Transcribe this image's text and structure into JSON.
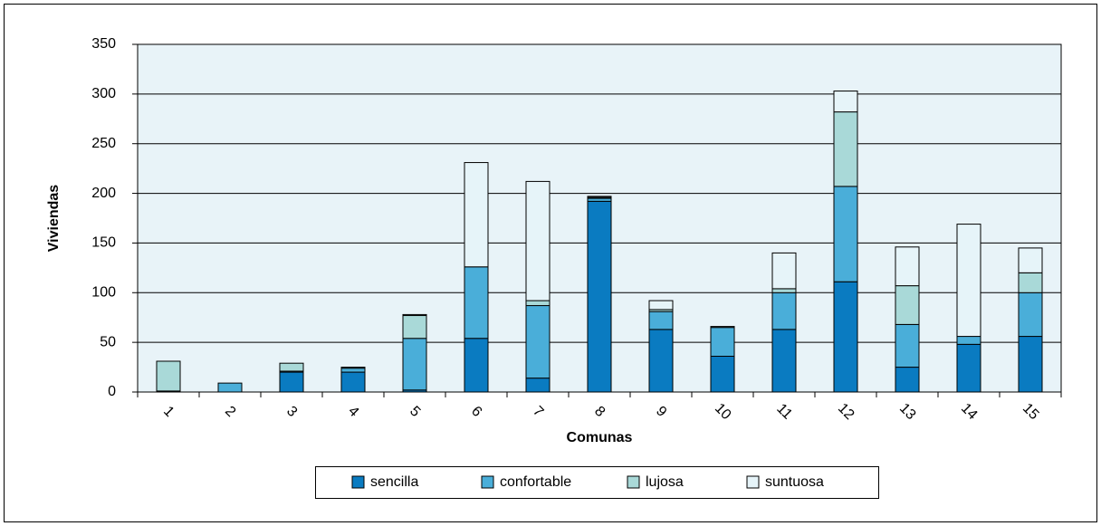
{
  "chart_data": {
    "type": "stacked_bar",
    "x_label": "Comunas",
    "y_label": "Viviendas",
    "categories": [
      "1",
      "2",
      "3",
      "4",
      "5",
      "6",
      "7",
      "8",
      "9",
      "10",
      "11",
      "12",
      "13",
      "14",
      "15"
    ],
    "series": [
      {
        "name": "sencilla",
        "color": "#0a7bc1",
        "values": [
          1,
          0,
          20,
          20,
          2,
          54,
          14,
          192,
          63,
          36,
          63,
          111,
          25,
          48,
          56
        ]
      },
      {
        "name": "confortable",
        "color": "#4aaed9",
        "values": [
          0,
          9,
          1,
          4,
          52,
          72,
          73,
          3,
          18,
          29,
          37,
          96,
          43,
          8,
          44
        ]
      },
      {
        "name": "lujosa",
        "color": "#a9d9d8",
        "values": [
          30,
          0,
          8,
          1,
          23,
          0,
          5,
          1,
          2,
          1,
          4,
          75,
          39,
          0,
          20
        ]
      },
      {
        "name": "suntuosa",
        "color": "#e6f4f9",
        "values": [
          0,
          0,
          0,
          0,
          1,
          105,
          120,
          1,
          9,
          0,
          36,
          21,
          39,
          113,
          25
        ]
      }
    ],
    "ylim": [
      0,
      350
    ],
    "yticks": [
      0,
      50,
      100,
      150,
      200,
      250,
      300,
      350
    ],
    "grid": true,
    "plot_background": "#e8f3f8",
    "legend": "bottom"
  }
}
